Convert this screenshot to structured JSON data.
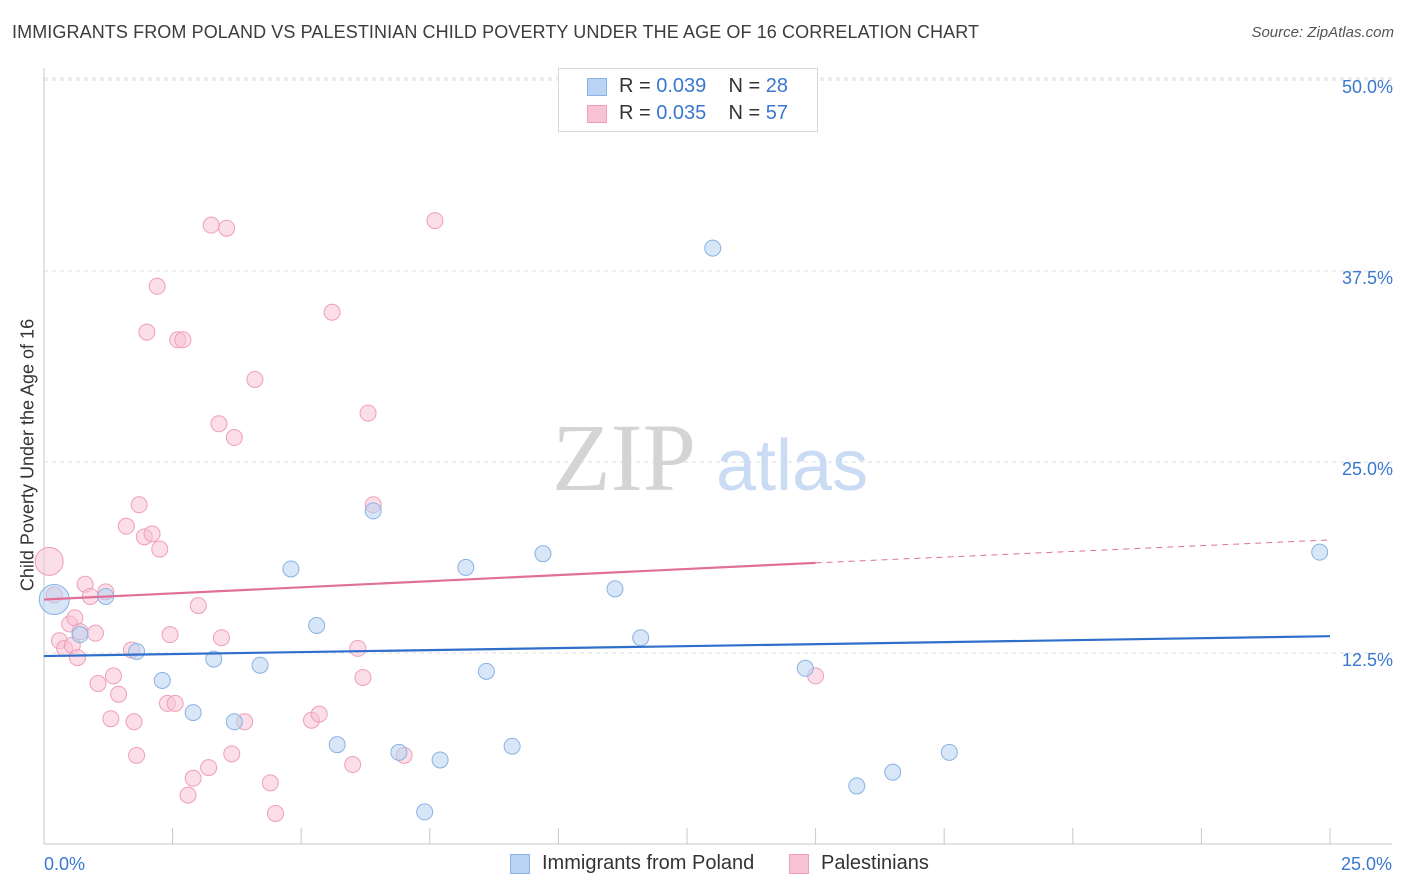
{
  "title": "IMMIGRANTS FROM POLAND VS PALESTINIAN CHILD POVERTY UNDER THE AGE OF 16 CORRELATION CHART",
  "source": "Source: ZipAtlas.com",
  "watermark": {
    "zip": "ZIP",
    "atlas": "atlas"
  },
  "legend": {
    "rows": [
      {
        "r_label": "R = ",
        "r_value": "0.039",
        "n_label": "N = ",
        "n_value": "28"
      },
      {
        "r_label": "R = ",
        "r_value": "0.035",
        "n_label": "N = ",
        "n_value": "57"
      }
    ]
  },
  "bottom_legend": {
    "blue": "Immigrants from Poland",
    "pink": "Palestinians"
  },
  "colors": {
    "blue_fill": "#b8d3f3",
    "blue_stroke": "#8ab2e3",
    "blue_line": "#2f6fcc",
    "pink_fill": "#f8c3d4",
    "pink_stroke": "#ee9fb9",
    "pink_line": "#e0709a",
    "tick": "#3a78d0",
    "grid": "#dedede"
  },
  "chart_data": {
    "type": "scatter",
    "title": "IMMIGRANTS FROM POLAND VS PALESTINIAN CHILD POVERTY UNDER THE AGE OF 16 CORRELATION CHART",
    "xlabel": "",
    "ylabel": "Child Poverty Under the Age of 16",
    "xlim": [
      0,
      25
    ],
    "ylim": [
      0,
      50
    ],
    "x_tick_labels": [
      "0.0%",
      "25.0%"
    ],
    "y_ticks": [
      12.5,
      25.0,
      37.5,
      50.0
    ],
    "y_tick_labels": [
      "12.5%",
      "25.0%",
      "37.5%",
      "50.0%"
    ],
    "grid": true,
    "legend_position": "top-center",
    "series": [
      {
        "name": "Immigrants from Poland",
        "R": 0.039,
        "N": 28,
        "trend": {
          "x": [
            0,
            25
          ],
          "y": [
            12.3,
            13.6
          ]
        },
        "points": [
          [
            0.2,
            16.0
          ],
          [
            1.2,
            16.2
          ],
          [
            0.7,
            13.7
          ],
          [
            1.8,
            12.6
          ],
          [
            2.3,
            10.7
          ],
          [
            2.9,
            8.6
          ],
          [
            3.3,
            12.1
          ],
          [
            3.7,
            8.0
          ],
          [
            4.2,
            11.7
          ],
          [
            4.8,
            18.0
          ],
          [
            5.3,
            14.3
          ],
          [
            5.7,
            6.5
          ],
          [
            6.4,
            21.8
          ],
          [
            6.9,
            6.0
          ],
          [
            7.4,
            2.1
          ],
          [
            7.7,
            5.5
          ],
          [
            8.2,
            18.1
          ],
          [
            8.6,
            11.3
          ],
          [
            9.1,
            6.4
          ],
          [
            9.7,
            19.0
          ],
          [
            11.1,
            16.7
          ],
          [
            11.6,
            13.5
          ],
          [
            13.0,
            39.0
          ],
          [
            14.8,
            11.5
          ],
          [
            15.8,
            3.8
          ],
          [
            16.5,
            4.7
          ],
          [
            17.6,
            6.0
          ],
          [
            24.8,
            19.1
          ]
        ]
      },
      {
        "name": "Palestinians",
        "R": 0.035,
        "N": 57,
        "trend": {
          "x": [
            0,
            15
          ],
          "y": [
            16.0,
            18.4
          ]
        },
        "trend_dashed": {
          "x": [
            15,
            25
          ],
          "y": [
            18.4,
            19.9
          ]
        },
        "points": [
          [
            0.1,
            18.5
          ],
          [
            0.2,
            16.3
          ],
          [
            0.3,
            13.3
          ],
          [
            0.4,
            12.8
          ],
          [
            0.5,
            14.4
          ],
          [
            0.55,
            13.0
          ],
          [
            0.6,
            14.8
          ],
          [
            0.65,
            12.2
          ],
          [
            0.7,
            13.9
          ],
          [
            0.8,
            17.0
          ],
          [
            0.9,
            16.2
          ],
          [
            1.0,
            13.8
          ],
          [
            1.05,
            10.5
          ],
          [
            1.2,
            16.5
          ],
          [
            1.3,
            8.2
          ],
          [
            1.35,
            11.0
          ],
          [
            1.45,
            9.8
          ],
          [
            1.6,
            20.8
          ],
          [
            1.7,
            12.7
          ],
          [
            1.75,
            8.0
          ],
          [
            1.8,
            5.8
          ],
          [
            1.85,
            22.2
          ],
          [
            1.95,
            20.1
          ],
          [
            2.0,
            33.5
          ],
          [
            2.1,
            20.3
          ],
          [
            2.2,
            36.5
          ],
          [
            2.25,
            19.3
          ],
          [
            2.4,
            9.2
          ],
          [
            2.45,
            13.7
          ],
          [
            2.55,
            9.2
          ],
          [
            2.6,
            33.0
          ],
          [
            2.7,
            33.0
          ],
          [
            2.8,
            3.2
          ],
          [
            2.9,
            4.3
          ],
          [
            3.0,
            15.6
          ],
          [
            3.2,
            5.0
          ],
          [
            3.25,
            40.5
          ],
          [
            3.4,
            27.5
          ],
          [
            3.45,
            13.5
          ],
          [
            3.55,
            40.3
          ],
          [
            3.65,
            5.9
          ],
          [
            3.7,
            26.6
          ],
          [
            3.9,
            8.0
          ],
          [
            4.1,
            30.4
          ],
          [
            4.4,
            4.0
          ],
          [
            4.5,
            2.0
          ],
          [
            5.2,
            8.1
          ],
          [
            5.35,
            8.5
          ],
          [
            5.6,
            34.8
          ],
          [
            6.0,
            5.2
          ],
          [
            6.1,
            12.8
          ],
          [
            6.2,
            10.9
          ],
          [
            6.3,
            28.2
          ],
          [
            6.4,
            22.2
          ],
          [
            7.0,
            5.8
          ],
          [
            7.6,
            40.8
          ],
          [
            15.0,
            11.0
          ]
        ]
      }
    ]
  }
}
